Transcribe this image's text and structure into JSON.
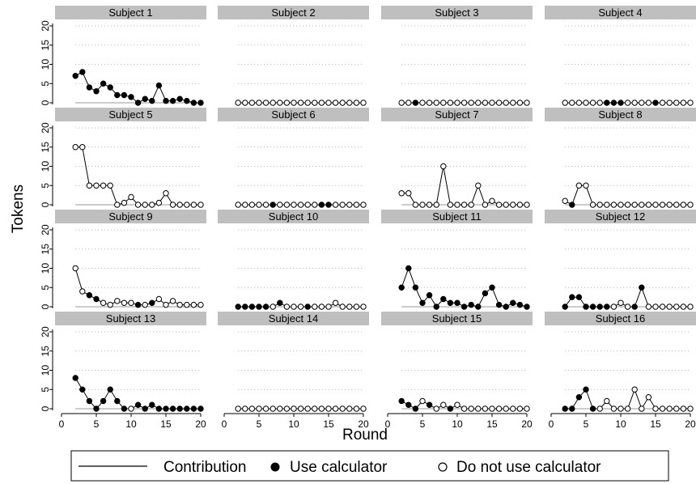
{
  "chart_data": {
    "type": "line",
    "facet": "wrap",
    "xlabel": "Round",
    "ylabel": "Tokens",
    "xlim": [
      0,
      20
    ],
    "ylim": [
      0,
      20
    ],
    "xticks": [
      0,
      5,
      10,
      15,
      20
    ],
    "yticks": [
      0,
      5,
      10,
      15,
      20
    ],
    "grid": "horizontal-dotted",
    "legend": {
      "position": "bottom",
      "items": [
        {
          "label": "Contribution",
          "kind": "line"
        },
        {
          "label": "Use calculator",
          "kind": "filled-marker"
        },
        {
          "label": "Do not use calculator",
          "kind": "hollow-marker"
        }
      ]
    },
    "x": [
      2,
      3,
      4,
      5,
      6,
      7,
      8,
      9,
      10,
      11,
      12,
      13,
      14,
      15,
      16,
      17,
      18,
      19,
      20
    ],
    "panels": [
      {
        "name": "Subject 1",
        "values": [
          7,
          8,
          4,
          3,
          5,
          4,
          2,
          2,
          1.5,
          0,
          1,
          0.5,
          4.5,
          0.5,
          0.5,
          1,
          0.5,
          0,
          0
        ],
        "calculator": [
          1,
          1,
          1,
          1,
          1,
          1,
          1,
          1,
          1,
          1,
          1,
          1,
          1,
          1,
          1,
          1,
          1,
          1,
          1
        ]
      },
      {
        "name": "Subject 2",
        "values": [
          0,
          0,
          0,
          0,
          0,
          0,
          0,
          0,
          0,
          0,
          0,
          0,
          0,
          0,
          0,
          0,
          0,
          0,
          0
        ],
        "calculator": [
          0,
          0,
          0,
          0,
          0,
          0,
          0,
          0,
          0,
          0,
          0,
          0,
          0,
          0,
          0,
          0,
          0,
          0,
          0
        ]
      },
      {
        "name": "Subject 3",
        "values": [
          0,
          0,
          0,
          0,
          0,
          0,
          0,
          0,
          0,
          0,
          0,
          0,
          0,
          0,
          0,
          0,
          0,
          0,
          0
        ],
        "calculator": [
          0,
          0,
          1,
          0,
          0,
          0,
          0,
          0,
          0,
          0,
          0,
          0,
          0,
          0,
          0,
          0,
          0,
          0,
          0
        ]
      },
      {
        "name": "Subject 4",
        "values": [
          0,
          0,
          0,
          0,
          0,
          0,
          0,
          0,
          0,
          0,
          0,
          0,
          0,
          0,
          0,
          0,
          0,
          0,
          0
        ],
        "calculator": [
          0,
          0,
          0,
          0,
          0,
          0,
          1,
          1,
          1,
          0,
          0,
          0,
          0,
          1,
          0,
          0,
          0,
          0,
          0
        ]
      },
      {
        "name": "Subject 5",
        "values": [
          15,
          15,
          5,
          5,
          5,
          5,
          0,
          0.5,
          2,
          0,
          0,
          0,
          0.5,
          3,
          0,
          0,
          0,
          0,
          0
        ],
        "calculator": [
          0,
          0,
          0,
          0,
          0,
          0,
          0,
          0,
          0,
          0,
          0,
          0,
          0,
          0,
          0,
          0,
          0,
          0,
          0
        ]
      },
      {
        "name": "Subject 6",
        "values": [
          0,
          0,
          0,
          0,
          0,
          0,
          0,
          0,
          0,
          0,
          0,
          0,
          0,
          0,
          0,
          0,
          0,
          0,
          0
        ],
        "calculator": [
          0,
          0,
          0,
          0,
          0,
          1,
          0,
          0,
          0,
          0,
          0,
          0,
          1,
          1,
          0,
          0,
          0,
          0,
          0
        ]
      },
      {
        "name": "Subject 7",
        "values": [
          3,
          3,
          0,
          0,
          0,
          0,
          10,
          0,
          0,
          0,
          0,
          5,
          0,
          1,
          0,
          0,
          0,
          0,
          0
        ],
        "calculator": [
          0,
          0,
          0,
          0,
          0,
          0,
          0,
          0,
          0,
          0,
          0,
          0,
          0,
          0,
          0,
          0,
          0,
          0,
          0
        ]
      },
      {
        "name": "Subject 8",
        "values": [
          1,
          0,
          5,
          5,
          0,
          0,
          0,
          0,
          0,
          0,
          0,
          0,
          0,
          0,
          0,
          0,
          0,
          0,
          0
        ],
        "calculator": [
          0,
          1,
          0,
          0,
          0,
          0,
          0,
          0,
          0,
          0,
          0,
          0,
          0,
          0,
          0,
          0,
          0,
          0,
          0
        ]
      },
      {
        "name": "Subject 9",
        "values": [
          10,
          4,
          3,
          2,
          1,
          0.5,
          1.5,
          1,
          1,
          0.5,
          0.5,
          1,
          2,
          0.5,
          1.5,
          0.5,
          0.5,
          0.5,
          0.5
        ],
        "calculator": [
          0,
          0,
          1,
          1,
          0,
          0,
          0,
          0,
          0,
          1,
          0,
          1,
          0,
          0,
          0,
          0,
          0,
          0,
          0
        ]
      },
      {
        "name": "Subject 10",
        "values": [
          0,
          0,
          0,
          0,
          0,
          0,
          1,
          0,
          0,
          0,
          0,
          0,
          0,
          0,
          1,
          0,
          0,
          0,
          0
        ],
        "calculator": [
          1,
          1,
          1,
          1,
          1,
          0,
          1,
          0,
          0,
          0,
          1,
          0,
          0,
          0,
          0,
          0,
          0,
          0,
          0
        ]
      },
      {
        "name": "Subject 11",
        "values": [
          5,
          10,
          5,
          1,
          3,
          0,
          2,
          1,
          1,
          0,
          0.5,
          0,
          3.5,
          5,
          0.5,
          0,
          1,
          0.5,
          0
        ],
        "calculator": [
          1,
          1,
          1,
          1,
          1,
          1,
          1,
          1,
          1,
          1,
          1,
          1,
          1,
          1,
          1,
          1,
          1,
          1,
          1
        ]
      },
      {
        "name": "Subject 12",
        "values": [
          0,
          2.5,
          2.5,
          0,
          0,
          0,
          0,
          0,
          1,
          0,
          0,
          5,
          0,
          0,
          0,
          0,
          0,
          0,
          0
        ],
        "calculator": [
          1,
          1,
          1,
          1,
          1,
          1,
          1,
          0,
          0,
          0,
          1,
          1,
          0,
          0,
          0,
          0,
          0,
          0,
          0
        ]
      },
      {
        "name": "Subject 13",
        "values": [
          8,
          5,
          2,
          0,
          2,
          5,
          2,
          0,
          0,
          1,
          0,
          1,
          0,
          0,
          0,
          0,
          0,
          0,
          0
        ],
        "calculator": [
          1,
          1,
          1,
          1,
          1,
          1,
          1,
          1,
          0,
          1,
          1,
          1,
          1,
          1,
          1,
          1,
          1,
          1,
          1
        ]
      },
      {
        "name": "Subject 14",
        "values": [
          0,
          0,
          0,
          0,
          0,
          0,
          0,
          0,
          0,
          0,
          0,
          0,
          0,
          0,
          0,
          0,
          0,
          0,
          0
        ],
        "calculator": [
          0,
          0,
          0,
          0,
          0,
          0,
          0,
          0,
          0,
          0,
          0,
          0,
          0,
          0,
          0,
          0,
          0,
          0,
          0
        ]
      },
      {
        "name": "Subject 15",
        "values": [
          2,
          1,
          0,
          2,
          1,
          0,
          1,
          0,
          1,
          0,
          0,
          0,
          0,
          0,
          0,
          0,
          0,
          0,
          0
        ],
        "calculator": [
          1,
          1,
          1,
          0,
          1,
          0,
          0,
          1,
          0,
          0,
          0,
          0,
          0,
          0,
          0,
          0,
          0,
          0,
          0
        ]
      },
      {
        "name": "Subject 16",
        "values": [
          0,
          0,
          3,
          5,
          0,
          0,
          2,
          0,
          0,
          0,
          5,
          0,
          3,
          0,
          0,
          0,
          0,
          0,
          0
        ],
        "calculator": [
          1,
          1,
          1,
          1,
          1,
          0,
          0,
          0,
          0,
          0,
          0,
          0,
          0,
          0,
          0,
          0,
          0,
          0,
          0
        ]
      }
    ]
  }
}
